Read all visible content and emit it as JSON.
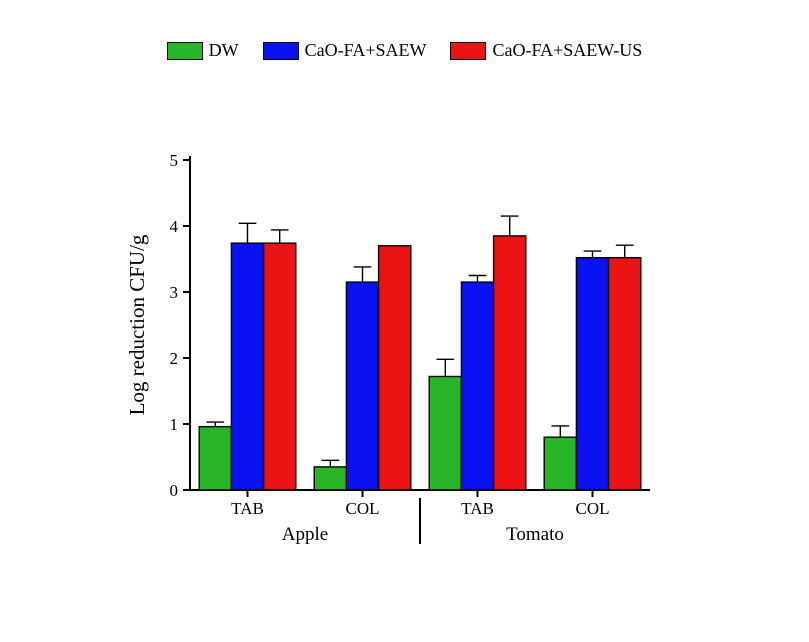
{
  "chart": {
    "type": "bar",
    "ylabel": "Log reduction CFU/g",
    "label_fontsize": 21,
    "tick_fontsize": 17,
    "category_fontsize": 17,
    "group_fontsize": 19,
    "ylim": [
      0,
      5
    ],
    "ytick_step": 1,
    "background_color": "#ffffff",
    "axis_color": "#000000",
    "bar_stroke": "#000000",
    "bar_width_rel": 0.28,
    "series": [
      {
        "key": "DW",
        "label": "DW",
        "color": "#28b528"
      },
      {
        "key": "CaO-FA+SAEW",
        "label": "CaO-FA+SAEW",
        "color": "#0a11f3"
      },
      {
        "key": "CaO-FA+SAEW-US",
        "label": "CaO-FA+SAEW-US",
        "color": "#ec1314"
      }
    ],
    "groups": [
      {
        "label": "Apple",
        "clusters": [
          {
            "label": "TAB",
            "values": {
              "DW": 0.96,
              "CaO-FA+SAEW": 3.74,
              "CaO-FA+SAEW-US": 3.74
            },
            "errors": {
              "DW": 0.07,
              "CaO-FA+SAEW": 0.3,
              "CaO-FA+SAEW-US": 0.2
            }
          },
          {
            "label": "COL",
            "values": {
              "DW": 0.35,
              "CaO-FA+SAEW": 3.15,
              "CaO-FA+SAEW-US": 3.7
            },
            "errors": {
              "DW": 0.1,
              "CaO-FA+SAEW": 0.23,
              "CaO-FA+SAEW-US": 0.0
            }
          }
        ]
      },
      {
        "label": "Tomato",
        "clusters": [
          {
            "label": "TAB",
            "values": {
              "DW": 1.72,
              "CaO-FA+SAEW": 3.15,
              "CaO-FA+SAEW-US": 3.85
            },
            "errors": {
              "DW": 0.26,
              "CaO-FA+SAEW": 0.1,
              "CaO-FA+SAEW-US": 0.3
            }
          },
          {
            "label": "COL",
            "values": {
              "DW": 0.8,
              "CaO-FA+SAEW": 3.52,
              "CaO-FA+SAEW-US": 3.52
            },
            "errors": {
              "DW": 0.17,
              "CaO-FA+SAEW": 0.1,
              "CaO-FA+SAEW-US": 0.19
            }
          }
        ]
      }
    ]
  }
}
